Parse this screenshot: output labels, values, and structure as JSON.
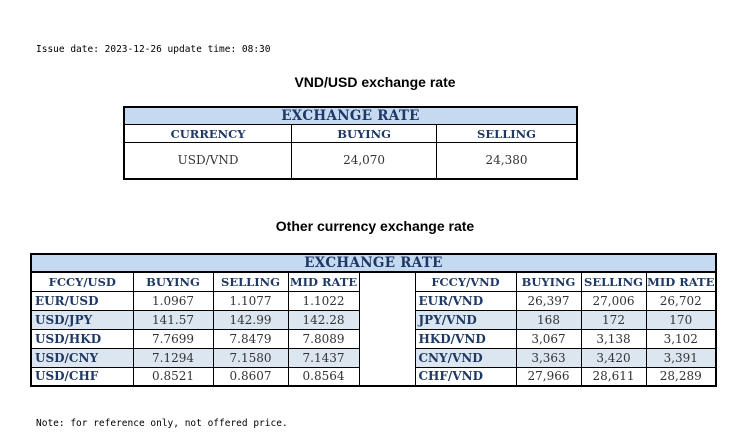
{
  "issue_line": "Issue date: 2023-12-26 update time: 08:30",
  "usd_title": "VND/USD exchange rate",
  "usd_table": {
    "title": "EXCHANGE RATE",
    "headers": [
      "CURRENCY",
      "BUYING",
      "SELLING"
    ],
    "row": [
      "USD/VND",
      "24,070",
      "24,380"
    ]
  },
  "other_title": "Other currency exchange rate",
  "other_table": {
    "title": "EXCHANGE  RATE",
    "left_headers": [
      "FCCY/USD",
      "BUYING",
      "SELLING",
      "MID RATE"
    ],
    "right_headers": [
      "FCCY/VND",
      "BUYING",
      "SELLING",
      "MID RATE"
    ],
    "left_rows": [
      [
        "EUR/USD",
        "1.0967",
        "1.1077",
        "1.1022"
      ],
      [
        "USD/JPY",
        "141.57",
        "142.99",
        "142.28"
      ],
      [
        "USD/HKD",
        "7.7699",
        "7.8479",
        "7.8089"
      ],
      [
        "USD/CNY",
        "7.1294",
        "7.1580",
        "7.1437"
      ],
      [
        "USD/CHF",
        "0.8521",
        "0.8607",
        "0.8564"
      ]
    ],
    "right_rows": [
      [
        "EUR/VND",
        "26,397",
        "27,006",
        "26,702"
      ],
      [
        "JPY/VND",
        "168",
        "172",
        "170"
      ],
      [
        "HKD/VND",
        "3,067",
        "3,138",
        "3,102"
      ],
      [
        "CNY/VND",
        "3,363",
        "3,420",
        "3,391"
      ],
      [
        "CHF/VND",
        "27,966",
        "28,611",
        "28,289"
      ]
    ]
  },
  "note": "Note: for reference only, not offered price.",
  "colors": {
    "header_bg": "#c5d9f1",
    "stripe_bg": "#dce6f1",
    "header_text": "#1f3864"
  }
}
